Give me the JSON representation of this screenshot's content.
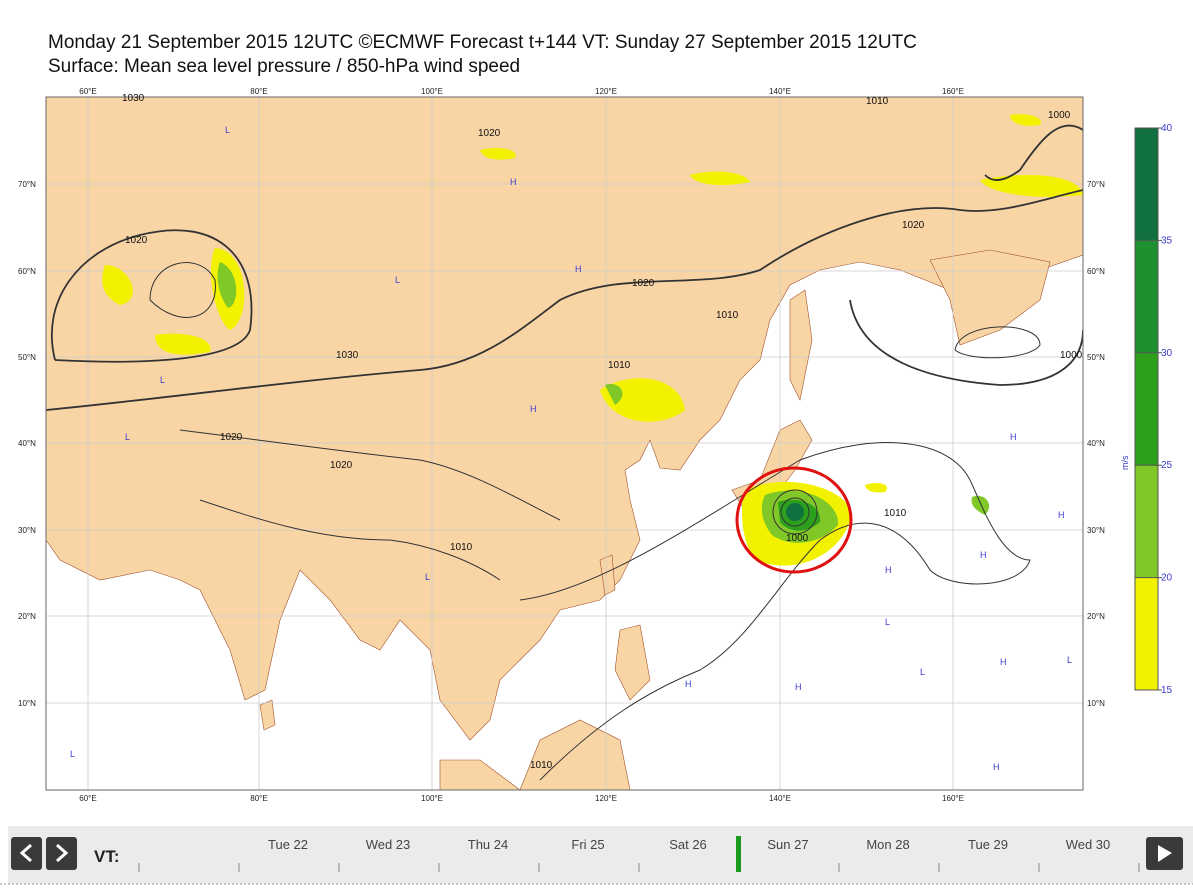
{
  "header": {
    "title": "Monday 21 September 2015 12UTC ©ECMWF Forecast t+144 VT: Sunday 27 September 2015 12UTC",
    "subtitle": "Surface: Mean sea level pressure / 850-hPa wind speed"
  },
  "map": {
    "lon_labels": [
      "60°E",
      "80°E",
      "100°E",
      "120°E",
      "140°E",
      "160°E"
    ],
    "lat_labels": [
      "70°N",
      "60°N",
      "50°N",
      "40°N",
      "30°N",
      "20°N",
      "10°N"
    ],
    "contour_labels": [
      "1030",
      "1020",
      "1020",
      "1020",
      "1020",
      "1010",
      "1030",
      "1010",
      "1020",
      "1020",
      "1010",
      "1000",
      "1010",
      "1000",
      "1010",
      "1000",
      "1010"
    ],
    "pressure_centers": [
      "L",
      "H",
      "L",
      "H",
      "L",
      "H",
      "L",
      "H",
      "L",
      "H",
      "H",
      "L",
      "H",
      "H",
      "L",
      "H",
      "H",
      "L",
      "H",
      "L"
    ]
  },
  "colorbar": {
    "ticks": [
      15,
      20,
      25,
      30,
      35,
      40
    ],
    "colors": [
      "#f2f200",
      "#80c828",
      "#2ca01c",
      "#1f9030",
      "#107040"
    ],
    "unit": "m/s"
  },
  "timeline": {
    "label": "VT:",
    "days": [
      "Tue 22",
      "Wed 23",
      "Thu 24",
      "Fri 25",
      "Sat 26",
      "Sun 27",
      "Mon 28",
      "Tue 29",
      "Wed 30"
    ],
    "selected": 5
  }
}
